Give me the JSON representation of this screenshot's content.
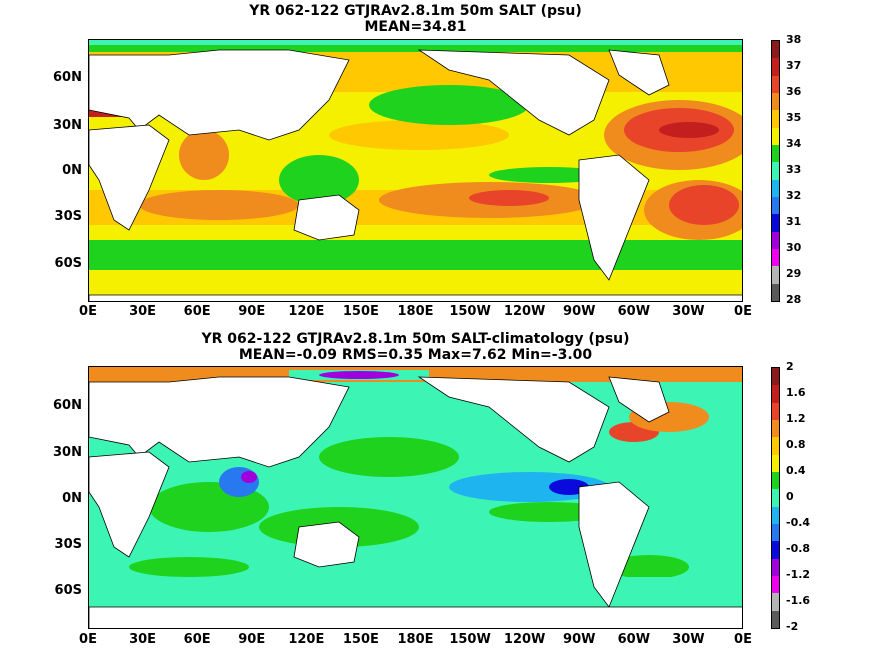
{
  "panels": [
    {
      "title_line1": "YR 062-122 GTJRAv2.8.1m 50m SALT (psu)",
      "title_line2": "MEAN=34.81",
      "colorbar": {
        "labels": [
          "38",
          "37",
          "36",
          "35",
          "34",
          "33",
          "32",
          "31",
          "30",
          "29",
          "28"
        ],
        "colors": [
          "#8b1a1a",
          "#c41e1e",
          "#e8442a",
          "#f08c1e",
          "#ffc800",
          "#f5f000",
          "#1ed21e",
          "#3cf5b4",
          "#1eb4f0",
          "#2878f0",
          "#0a0adc",
          "#a000dc",
          "#f000f0",
          "#b4b4b4",
          "#5a5a5a"
        ]
      }
    },
    {
      "title_line1": "YR 062-122 GTJRAv2.8.1m 50m SALT-climatology (psu)",
      "title_line2": "MEAN=-0.09   RMS=0.35   Max=7.62   Min=-3.00",
      "colorbar": {
        "labels": [
          "2",
          "1.6",
          "1.2",
          "0.8",
          "0.4",
          "0",
          "-0.4",
          "-0.8",
          "-1.2",
          "-1.6",
          "-2"
        ],
        "colors": [
          "#8b1a1a",
          "#c41e1e",
          "#e8442a",
          "#f08c1e",
          "#ffc800",
          "#f5f000",
          "#1ed21e",
          "#3cf5b4",
          "#1eb4f0",
          "#2878f0",
          "#0a0adc",
          "#a000dc",
          "#f000f0",
          "#b4b4b4",
          "#5a5a5a"
        ]
      }
    }
  ],
  "y_ticks": [
    "60N",
    "30N",
    "0N",
    "30S",
    "60S"
  ],
  "x_ticks": [
    "0E",
    "30E",
    "60E",
    "90E",
    "120E",
    "150E",
    "180E",
    "150W",
    "120W",
    "90W",
    "60W",
    "30W",
    "0E"
  ]
}
